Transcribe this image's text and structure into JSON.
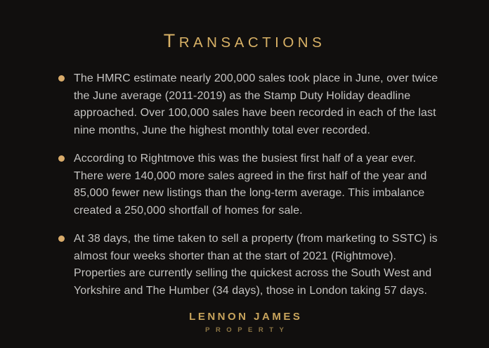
{
  "slide": {
    "title": "Transactions",
    "bullets": [
      {
        "text": "The HMRC estimate nearly 200,000 sales took place in June, over twice\nthe June average (2011-2019) as the Stamp Duty Holiday deadline\napproached. Over 100,000 sales have been recorded in each of the last\nnine months, June the highest monthly total ever recorded."
      },
      {
        "text": "According to Rightmove this was the busiest first half of a year ever.\nThere were 140,000 more sales agreed in the first half of the year and\n85,000 fewer new listings than the long-term average. This imbalance\ncreated a 250,000 shortfall of homes for sale."
      },
      {
        "text": "At 38 days, the time taken to sell a property (from marketing to SSTC) is\nalmost four weeks shorter than at the start of 2021 (Rightmove).\nProperties are currently selling the quickest across the South West and\nYorkshire and The Humber (34 days), those in London taking 57 days."
      }
    ],
    "logo": {
      "name": "LENNON JAMES",
      "tagline": "PROPERTY"
    },
    "colors": {
      "background": "#110f0e",
      "accent_gold": "#d8b166",
      "bullet_dot": "#d9ab6a",
      "body_text": "#c5c4c2",
      "logo_gold": "#c8a45c",
      "tagline_gold": "#8e7745"
    }
  }
}
